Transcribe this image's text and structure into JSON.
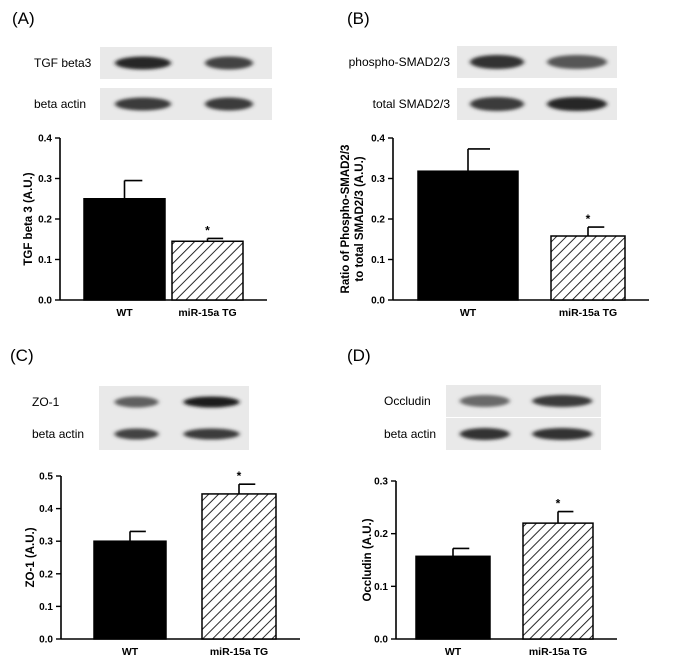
{
  "panels": [
    {
      "label": "(A)",
      "blots": [
        {
          "name": "TGF beta3",
          "bands": [
            0.85,
            0.7
          ]
        },
        {
          "name": "beta actin",
          "bands": [
            0.75,
            0.75
          ]
        }
      ],
      "chart_data": {
        "type": "bar",
        "categories": [
          "WT",
          "miR-15a TG"
        ],
        "values": [
          0.25,
          0.145
        ],
        "errors": [
          0.045,
          0.007
        ],
        "significance": [
          "",
          "*"
        ],
        "fills": [
          "solid",
          "hatched"
        ],
        "ylabel": "TGF beta 3 (A.U.)",
        "ylim": [
          0,
          0.4
        ],
        "yticks": [
          0.0,
          0.1,
          0.2,
          0.3,
          0.4
        ],
        "tick_labels": [
          "0.0",
          "0.1",
          "0.2",
          "0.3",
          "0.4"
        ]
      }
    },
    {
      "label": "(B)",
      "blots": [
        {
          "name": "phospho-SMAD2/3",
          "bands": [
            0.8,
            0.6
          ]
        },
        {
          "name": "total SMAD2/3",
          "bands": [
            0.75,
            0.85
          ]
        }
      ],
      "chart_data": {
        "type": "bar",
        "categories": [
          "WT",
          "miR-15a TG"
        ],
        "values": [
          0.318,
          0.158
        ],
        "errors": [
          0.055,
          0.022
        ],
        "significance": [
          "",
          "*"
        ],
        "fills": [
          "solid",
          "hatched"
        ],
        "ylabel_lines": [
          "Ratio of Phospho-SMAD2/3",
          "to total SMAD2/3  (A.U.)"
        ],
        "ylim": [
          0,
          0.4
        ],
        "yticks": [
          0.0,
          0.1,
          0.2,
          0.3,
          0.4
        ],
        "tick_labels": [
          "0.0",
          "0.1",
          "0.2",
          "0.3",
          "0.4"
        ]
      }
    },
    {
      "label": "(C)",
      "blots": [
        {
          "name": "ZO-1",
          "bands": [
            0.55,
            0.9
          ]
        },
        {
          "name": "beta actin",
          "bands": [
            0.7,
            0.75
          ]
        }
      ],
      "chart_data": {
        "type": "bar",
        "categories": [
          "WT",
          "miR-15a TG"
        ],
        "values": [
          0.3,
          0.445
        ],
        "errors": [
          0.03,
          0.03
        ],
        "significance": [
          "",
          "*"
        ],
        "fills": [
          "solid",
          "hatched"
        ],
        "ylabel": "ZO-1 (A.U.)",
        "ylim": [
          0,
          0.5
        ],
        "yticks": [
          0.0,
          0.1,
          0.2,
          0.3,
          0.4,
          0.5
        ],
        "tick_labels": [
          "0.0",
          "0.1",
          "0.2",
          "0.3",
          "0.4",
          "0.5"
        ]
      }
    },
    {
      "label": "(D)",
      "blots": [
        {
          "name": "Occludin",
          "bands": [
            0.5,
            0.75
          ]
        },
        {
          "name": "beta actin",
          "bands": [
            0.8,
            0.8
          ]
        }
      ],
      "chart_data": {
        "type": "bar",
        "categories": [
          "WT",
          "miR-15a TG"
        ],
        "values": [
          0.157,
          0.22
        ],
        "errors": [
          0.015,
          0.022
        ],
        "significance": [
          "",
          "*"
        ],
        "fills": [
          "solid",
          "hatched"
        ],
        "ylabel": "Occludin (A.U.)",
        "ylim": [
          0,
          0.3
        ],
        "yticks": [
          0.0,
          0.1,
          0.2,
          0.3
        ],
        "tick_labels": [
          "0.0",
          "0.1",
          "0.2",
          "0.3"
        ]
      }
    }
  ]
}
